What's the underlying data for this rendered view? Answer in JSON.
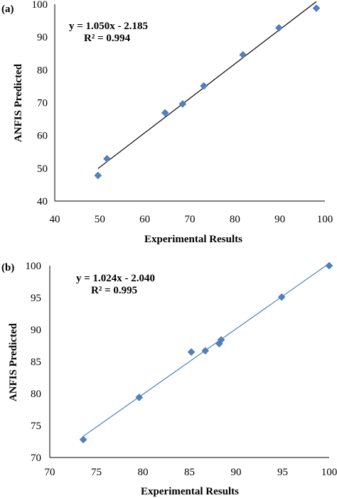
{
  "chart_data": [
    {
      "type": "scatter",
      "panel_label": "(a)",
      "xlabel": "Experimental Results",
      "ylabel": "ANFIS Predicted",
      "xlim": [
        40,
        100
      ],
      "ylim": [
        40,
        100
      ],
      "xticks": [
        40,
        50,
        60,
        70,
        80,
        90,
        100
      ],
      "yticks": [
        40,
        50,
        60,
        70,
        80,
        90,
        100
      ],
      "grid": false,
      "marker_color": "#4f81bd",
      "line_color": "#000000",
      "equation": "y = 1.050x - 2.185",
      "r2": "R² = 0.994",
      "trendline": {
        "slope": 1.05,
        "intercept": -2.185,
        "x_range": [
          49.6,
          98.1
        ]
      },
      "points": [
        {
          "x": 49.6,
          "y": 47.8
        },
        {
          "x": 51.6,
          "y": 52.9
        },
        {
          "x": 64.5,
          "y": 66.9
        },
        {
          "x": 68.4,
          "y": 69.6
        },
        {
          "x": 73.1,
          "y": 75.1
        },
        {
          "x": 81.8,
          "y": 84.6
        },
        {
          "x": 89.8,
          "y": 92.8
        },
        {
          "x": 98.1,
          "y": 98.8
        }
      ]
    },
    {
      "type": "scatter",
      "panel_label": "(b)",
      "xlabel": "Experimental Results",
      "ylabel": "ANFIS Predicted",
      "xlim": [
        70,
        100
      ],
      "ylim": [
        70,
        100
      ],
      "xticks": [
        70,
        75,
        80,
        85,
        90,
        95,
        100
      ],
      "yticks": [
        70,
        75,
        80,
        85,
        90,
        95,
        100
      ],
      "grid": false,
      "marker_color": "#4f81bd",
      "line_color": "#4f81bd",
      "equation": "y = 1.024x - 2.040",
      "r2": "R² = 0.995",
      "trendline": {
        "slope": 1.024,
        "intercept": -2.04,
        "x_range": [
          73.6,
          100
        ]
      },
      "points": [
        {
          "x": 73.6,
          "y": 72.8
        },
        {
          "x": 79.6,
          "y": 79.4
        },
        {
          "x": 85.2,
          "y": 86.5
        },
        {
          "x": 86.7,
          "y": 86.7
        },
        {
          "x": 88.2,
          "y": 87.8
        },
        {
          "x": 88.4,
          "y": 88.4
        },
        {
          "x": 94.9,
          "y": 95.1
        },
        {
          "x": 100.0,
          "y": 100.0
        }
      ]
    }
  ]
}
